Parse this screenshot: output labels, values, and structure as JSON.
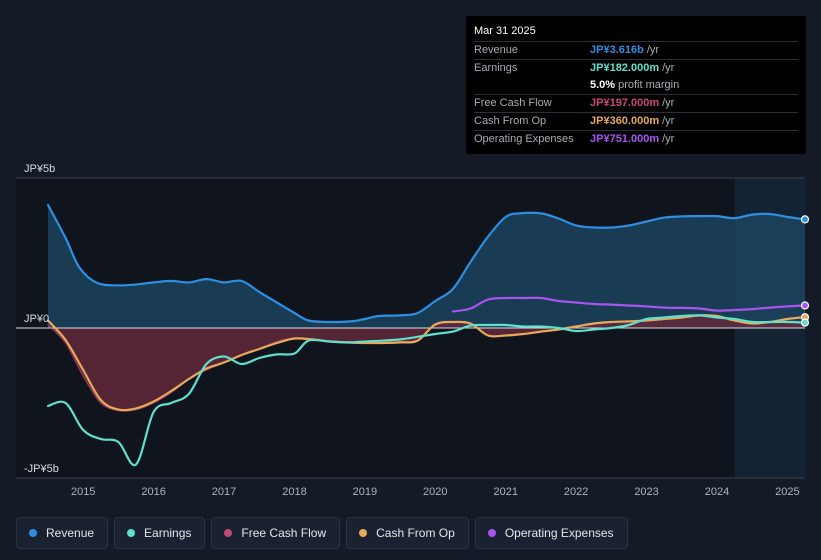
{
  "tooltip": {
    "date": "Mar 31 2025",
    "rows": [
      {
        "label": "Revenue",
        "value": "JP¥3.616b",
        "unit": "/yr",
        "color": "#2d8fe2"
      },
      {
        "label": "Earnings",
        "value": "JP¥182.000m",
        "unit": "/yr",
        "color": "#5ee0cc"
      },
      {
        "label": "",
        "value": "5.0%",
        "unit": "profit margin",
        "color": "#ffffff"
      },
      {
        "label": "Free Cash Flow",
        "value": "JP¥197.000m",
        "unit": "/yr",
        "color": "#d0467c"
      },
      {
        "label": "Cash From Op",
        "value": "JP¥360.000m",
        "unit": "/yr",
        "color": "#e8a95c"
      },
      {
        "label": "Operating Expenses",
        "value": "JP¥751.000m",
        "unit": "/yr",
        "color": "#a855f0"
      }
    ]
  },
  "legend": [
    {
      "label": "Revenue",
      "color": "#2d8fe2"
    },
    {
      "label": "Earnings",
      "color": "#5ee0cc"
    },
    {
      "label": "Free Cash Flow",
      "color": "#c7487a"
    },
    {
      "label": "Cash From Op",
      "color": "#e8a95c"
    },
    {
      "label": "Operating Expenses",
      "color": "#a855f0"
    }
  ],
  "chart_data": {
    "type": "area",
    "y_unit": "JPY billions",
    "ylim": [
      -5,
      5
    ],
    "xlim": [
      2014.5,
      2025.25
    ],
    "y_tick_labels": [
      {
        "value": 5,
        "label": "JP¥5b"
      },
      {
        "value": 0,
        "label": "JP¥0"
      },
      {
        "value": -5,
        "label": "-JP¥5b"
      }
    ],
    "x_ticks": [
      2015,
      2016,
      2017,
      2018,
      2019,
      2020,
      2021,
      2022,
      2023,
      2024,
      2025
    ],
    "highlight_from": 2024.25,
    "series": [
      {
        "name": "Revenue",
        "color": "#2d8fe2",
        "fill": "#1d4867",
        "points": [
          [
            2014.5,
            4.1
          ],
          [
            2014.75,
            3.0
          ],
          [
            2014.95,
            2.0
          ],
          [
            2015.2,
            1.5
          ],
          [
            2015.5,
            1.42
          ],
          [
            2015.75,
            1.45
          ],
          [
            2016.0,
            1.52
          ],
          [
            2016.25,
            1.57
          ],
          [
            2016.5,
            1.52
          ],
          [
            2016.75,
            1.63
          ],
          [
            2017.0,
            1.52
          ],
          [
            2017.25,
            1.57
          ],
          [
            2017.5,
            1.2
          ],
          [
            2017.75,
            0.85
          ],
          [
            2018.0,
            0.5
          ],
          [
            2018.2,
            0.25
          ],
          [
            2018.5,
            0.2
          ],
          [
            2018.8,
            0.22
          ],
          [
            2019.0,
            0.3
          ],
          [
            2019.2,
            0.4
          ],
          [
            2019.5,
            0.42
          ],
          [
            2019.75,
            0.5
          ],
          [
            2020.0,
            0.9
          ],
          [
            2020.25,
            1.3
          ],
          [
            2020.5,
            2.2
          ],
          [
            2020.75,
            3.05
          ],
          [
            2021.0,
            3.7
          ],
          [
            2021.2,
            3.82
          ],
          [
            2021.5,
            3.82
          ],
          [
            2021.75,
            3.65
          ],
          [
            2022.0,
            3.42
          ],
          [
            2022.25,
            3.35
          ],
          [
            2022.5,
            3.35
          ],
          [
            2022.75,
            3.42
          ],
          [
            2023.0,
            3.55
          ],
          [
            2023.25,
            3.68
          ],
          [
            2023.5,
            3.72
          ],
          [
            2023.75,
            3.73
          ],
          [
            2024.0,
            3.73
          ],
          [
            2024.25,
            3.66
          ],
          [
            2024.5,
            3.78
          ],
          [
            2024.75,
            3.8
          ],
          [
            2025.0,
            3.7
          ],
          [
            2025.25,
            3.62
          ]
        ]
      },
      {
        "name": "Earnings",
        "color": "#5ee0cc",
        "points": [
          [
            2014.5,
            -2.6
          ],
          [
            2014.75,
            -2.5
          ],
          [
            2015.0,
            -3.4
          ],
          [
            2015.25,
            -3.7
          ],
          [
            2015.5,
            -3.8
          ],
          [
            2015.75,
            -4.55
          ],
          [
            2016.0,
            -2.8
          ],
          [
            2016.25,
            -2.5
          ],
          [
            2016.5,
            -2.2
          ],
          [
            2016.75,
            -1.2
          ],
          [
            2017.0,
            -0.95
          ],
          [
            2017.25,
            -1.2
          ],
          [
            2017.5,
            -1.0
          ],
          [
            2017.75,
            -0.88
          ],
          [
            2018.0,
            -0.85
          ],
          [
            2018.2,
            -0.42
          ],
          [
            2018.5,
            -0.45
          ],
          [
            2018.75,
            -0.48
          ],
          [
            2019.0,
            -0.45
          ],
          [
            2019.5,
            -0.38
          ],
          [
            2020.0,
            -0.2
          ],
          [
            2020.25,
            -0.12
          ],
          [
            2020.5,
            0.08
          ],
          [
            2020.75,
            0.1
          ],
          [
            2021.0,
            0.1
          ],
          [
            2021.25,
            0.05
          ],
          [
            2021.5,
            0.05
          ],
          [
            2021.75,
            0.0
          ],
          [
            2022.0,
            -0.1
          ],
          [
            2022.25,
            -0.05
          ],
          [
            2022.5,
            0.0
          ],
          [
            2022.75,
            0.1
          ],
          [
            2023.0,
            0.3
          ],
          [
            2023.25,
            0.35
          ],
          [
            2023.5,
            0.4
          ],
          [
            2023.75,
            0.42
          ],
          [
            2024.0,
            0.35
          ],
          [
            2024.25,
            0.3
          ],
          [
            2024.5,
            0.2
          ],
          [
            2024.75,
            0.2
          ],
          [
            2025.0,
            0.2
          ],
          [
            2025.25,
            0.18
          ]
        ]
      },
      {
        "name": "Free Cash Flow",
        "color": "#d0467c",
        "fill": "#63283a",
        "points": [
          [
            2014.5,
            0.1
          ],
          [
            2014.75,
            -0.5
          ],
          [
            2015.0,
            -1.6
          ],
          [
            2015.25,
            -2.5
          ],
          [
            2015.5,
            -2.75
          ],
          [
            2015.75,
            -2.72
          ],
          [
            2016.0,
            -2.5
          ],
          [
            2016.25,
            -2.15
          ],
          [
            2016.5,
            -1.7
          ],
          [
            2016.75,
            -1.4
          ],
          [
            2017.0,
            -1.15
          ],
          [
            2017.25,
            -0.9
          ],
          [
            2017.5,
            -0.7
          ],
          [
            2017.75,
            -0.45
          ],
          [
            2018.0,
            -0.35
          ],
          [
            2018.25,
            -0.4
          ],
          [
            2018.5,
            -0.45
          ],
          [
            2018.75,
            -0.5
          ],
          [
            2019.0,
            -0.5
          ],
          [
            2019.25,
            -0.5
          ],
          [
            2019.5,
            -0.45
          ],
          [
            2019.75,
            -0.4
          ],
          [
            2020.0,
            0.1
          ],
          [
            2020.25,
            0.2
          ],
          [
            2020.5,
            0.15
          ],
          [
            2020.75,
            -0.25
          ],
          [
            2021.0,
            -0.25
          ],
          [
            2021.25,
            -0.2
          ],
          [
            2021.5,
            -0.12
          ],
          [
            2021.75,
            -0.05
          ],
          [
            2022.0,
            0.05
          ],
          [
            2022.25,
            0.15
          ],
          [
            2022.5,
            0.2
          ],
          [
            2022.75,
            0.22
          ],
          [
            2023.0,
            0.25
          ],
          [
            2023.25,
            0.3
          ],
          [
            2023.5,
            0.35
          ],
          [
            2023.75,
            0.4
          ],
          [
            2024.0,
            0.38
          ],
          [
            2024.25,
            0.25
          ],
          [
            2024.5,
            0.15
          ],
          [
            2024.75,
            0.2
          ],
          [
            2025.0,
            0.22
          ],
          [
            2025.25,
            0.2
          ]
        ]
      },
      {
        "name": "Cash From Op",
        "color": "#e8a95c",
        "points": [
          [
            2014.5,
            0.25
          ],
          [
            2014.75,
            -0.4
          ],
          [
            2015.0,
            -1.4
          ],
          [
            2015.25,
            -2.4
          ],
          [
            2015.5,
            -2.72
          ],
          [
            2015.75,
            -2.68
          ],
          [
            2016.0,
            -2.45
          ],
          [
            2016.25,
            -2.1
          ],
          [
            2016.5,
            -1.7
          ],
          [
            2016.75,
            -1.35
          ],
          [
            2017.0,
            -1.15
          ],
          [
            2017.25,
            -0.9
          ],
          [
            2017.5,
            -0.7
          ],
          [
            2017.75,
            -0.5
          ],
          [
            2018.0,
            -0.35
          ],
          [
            2018.25,
            -0.38
          ],
          [
            2018.5,
            -0.45
          ],
          [
            2018.75,
            -0.48
          ],
          [
            2019.0,
            -0.5
          ],
          [
            2019.25,
            -0.5
          ],
          [
            2019.5,
            -0.48
          ],
          [
            2019.75,
            -0.42
          ],
          [
            2020.0,
            0.12
          ],
          [
            2020.25,
            0.2
          ],
          [
            2020.5,
            0.15
          ],
          [
            2020.75,
            -0.25
          ],
          [
            2021.0,
            -0.25
          ],
          [
            2021.25,
            -0.2
          ],
          [
            2021.5,
            -0.12
          ],
          [
            2021.75,
            -0.05
          ],
          [
            2022.0,
            0.05
          ],
          [
            2022.25,
            0.15
          ],
          [
            2022.5,
            0.2
          ],
          [
            2022.75,
            0.22
          ],
          [
            2023.0,
            0.25
          ],
          [
            2023.25,
            0.3
          ],
          [
            2023.5,
            0.35
          ],
          [
            2023.75,
            0.42
          ],
          [
            2024.0,
            0.4
          ],
          [
            2024.25,
            0.25
          ],
          [
            2024.5,
            0.15
          ],
          [
            2024.75,
            0.2
          ],
          [
            2025.0,
            0.3
          ],
          [
            2025.25,
            0.36
          ]
        ]
      },
      {
        "name": "Operating Expenses",
        "color": "#a855f0",
        "points": [
          [
            2020.25,
            0.55
          ],
          [
            2020.5,
            0.65
          ],
          [
            2020.75,
            0.95
          ],
          [
            2021.0,
            1.0
          ],
          [
            2021.25,
            1.0
          ],
          [
            2021.5,
            1.0
          ],
          [
            2021.75,
            0.9
          ],
          [
            2022.0,
            0.85
          ],
          [
            2022.25,
            0.8
          ],
          [
            2022.5,
            0.78
          ],
          [
            2022.75,
            0.75
          ],
          [
            2023.0,
            0.72
          ],
          [
            2023.25,
            0.68
          ],
          [
            2023.5,
            0.67
          ],
          [
            2023.75,
            0.65
          ],
          [
            2024.0,
            0.58
          ],
          [
            2024.25,
            0.6
          ],
          [
            2024.5,
            0.63
          ],
          [
            2024.75,
            0.68
          ],
          [
            2025.0,
            0.72
          ],
          [
            2025.25,
            0.75
          ]
        ]
      }
    ]
  }
}
